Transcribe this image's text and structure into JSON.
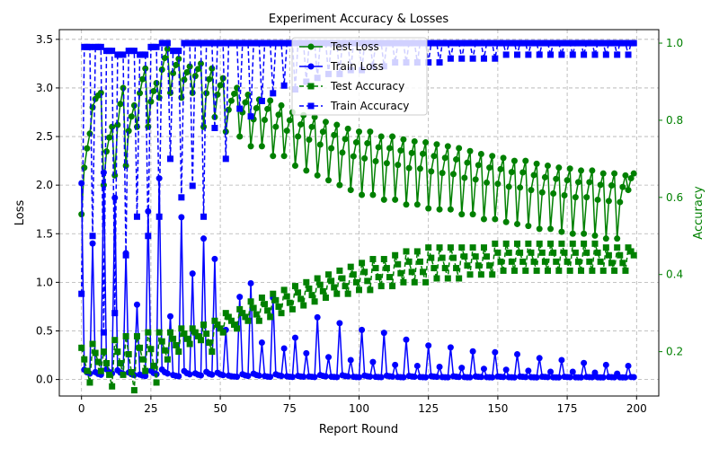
{
  "chart_data": {
    "type": "line",
    "title": "Experiment Accuracy & Losses",
    "xlabel": "Report Round",
    "ylabel": "Loss",
    "ylabel_right": "Accuracy",
    "xlim": [
      -8,
      208
    ],
    "ylim": [
      -0.17,
      3.6
    ],
    "ylim_right": [
      0.085,
      1.035
    ],
    "x_ticks": [
      0,
      25,
      50,
      75,
      100,
      125,
      150,
      175,
      200
    ],
    "y_ticks": [
      0.0,
      0.5,
      1.0,
      1.5,
      2.0,
      2.5,
      3.0,
      3.5
    ],
    "y_ticks_right": [
      0.2,
      0.4,
      0.6,
      0.8,
      1.0
    ],
    "grid": true,
    "legend_position": "top-center",
    "colors": {
      "loss": "#008000",
      "train_loss": "#0000ff",
      "test_acc": "#008000",
      "train_acc": "#0000ff",
      "right_axis": "#008000"
    },
    "series": [
      {
        "name": "Test Loss",
        "axis": "left",
        "color": "#008000",
        "linestyle": "solid",
        "marker": "circle"
      },
      {
        "name": "Train Loss",
        "axis": "left",
        "color": "#0000ff",
        "linestyle": "solid",
        "marker": "circle"
      },
      {
        "name": "Test Accuracy",
        "axis": "right",
        "color": "#008000",
        "linestyle": "dashed",
        "marker": "square"
      },
      {
        "name": "Train Accuracy",
        "axis": "right",
        "color": "#0000ff",
        "linestyle": "dashed",
        "marker": "square"
      }
    ],
    "cycle_pattern": {
      "x_max": 199,
      "cycles": [
        {
          "start": 0,
          "len": 4,
          "tl_peak": 2.53,
          "tl_trough": 1.7,
          "tr_peak": 2.02,
          "ta_low": 0.12,
          "ta_high": 0.21,
          "tra_low": 0.35,
          "tra_high": 0.99
        },
        {
          "start": 4,
          "len": 4,
          "tl_peak": 2.95,
          "tl_trough": 2.8,
          "tr_peak": 1.4,
          "ta_low": 0.15,
          "ta_high": 0.22,
          "tra_low": 0.5,
          "tra_high": 0.99
        },
        {
          "start": 8,
          "len": 4,
          "tl_peak": 2.6,
          "tl_trough": 2.0,
          "tr_peak": 2.13,
          "ta_low": 0.11,
          "ta_high": 0.2,
          "tra_low": 0.25,
          "tra_high": 0.98
        },
        {
          "start": 12,
          "len": 4,
          "tl_peak": 3.0,
          "tl_trough": 2.1,
          "tr_peak": 1.87,
          "ta_low": 0.14,
          "ta_high": 0.23,
          "tra_low": 0.3,
          "tra_high": 0.97
        },
        {
          "start": 16,
          "len": 4,
          "tl_peak": 2.82,
          "tl_trough": 2.2,
          "tr_peak": 1.3,
          "ta_low": 0.1,
          "ta_high": 0.24,
          "tra_low": 0.45,
          "tra_high": 0.98
        },
        {
          "start": 20,
          "len": 4,
          "tl_peak": 3.2,
          "tl_trough": 2.6,
          "tr_peak": 0.77,
          "ta_low": 0.15,
          "ta_high": 0.24,
          "tra_low": 0.55,
          "tra_high": 0.97
        },
        {
          "start": 24,
          "len": 4,
          "tl_peak": 3.05,
          "tl_trough": 2.6,
          "tr_peak": 1.73,
          "ta_low": 0.12,
          "ta_high": 0.25,
          "tra_low": 0.5,
          "tra_high": 0.99
        },
        {
          "start": 28,
          "len": 4,
          "tl_peak": 3.4,
          "tl_trough": 2.9,
          "tr_peak": 2.07,
          "ta_low": 0.18,
          "ta_high": 0.25,
          "tra_low": 0.55,
          "tra_high": 1.0
        },
        {
          "start": 32,
          "len": 4,
          "tl_peak": 3.3,
          "tl_trough": 2.95,
          "tr_peak": 0.65,
          "ta_low": 0.2,
          "ta_high": 0.25,
          "tra_low": 0.7,
          "tra_high": 0.98
        },
        {
          "start": 36,
          "len": 4,
          "tl_peak": 3.22,
          "tl_trough": 2.9,
          "tr_peak": 1.67,
          "ta_low": 0.22,
          "ta_high": 0.26,
          "tra_low": 0.6,
          "tra_high": 1.0
        },
        {
          "start": 40,
          "len": 4,
          "tl_peak": 3.25,
          "tl_trough": 2.95,
          "tr_peak": 1.09,
          "ta_low": 0.23,
          "ta_high": 0.26,
          "tra_low": 0.63,
          "tra_high": 1.0
        },
        {
          "start": 44,
          "len": 4,
          "tl_peak": 3.2,
          "tl_trough": 2.6,
          "tr_peak": 1.45,
          "ta_low": 0.2,
          "ta_high": 0.27,
          "tra_low": 0.55,
          "tra_high": 1.0
        },
        {
          "start": 48,
          "len": 4,
          "tl_peak": 3.1,
          "tl_trough": 2.7,
          "tr_peak": 1.24,
          "ta_low": 0.25,
          "ta_high": 0.28,
          "tra_low": 0.78,
          "tra_high": 1.0
        },
        {
          "start": 52,
          "len": 5,
          "tl_peak": 3.0,
          "tl_trough": 2.55,
          "tr_peak": 0.51,
          "ta_low": 0.26,
          "ta_high": 0.3,
          "tra_low": 0.7,
          "tra_high": 1.0
        },
        {
          "start": 57,
          "len": 4,
          "tl_peak": 2.93,
          "tl_trough": 2.5,
          "tr_peak": 0.85,
          "ta_low": 0.28,
          "ta_high": 0.31,
          "tra_low": 0.83,
          "tra_high": 1.0
        },
        {
          "start": 61,
          "len": 4,
          "tl_peak": 2.88,
          "tl_trough": 2.4,
          "tr_peak": 0.99,
          "ta_low": 0.28,
          "ta_high": 0.33,
          "tra_low": 0.81,
          "tra_high": 1.0
        },
        {
          "start": 65,
          "len": 4,
          "tl_peak": 2.87,
          "tl_trough": 2.4,
          "tr_peak": 0.38,
          "ta_low": 0.29,
          "ta_high": 0.34,
          "tra_low": 0.85,
          "tra_high": 1.0
        },
        {
          "start": 69,
          "len": 4,
          "tl_peak": 2.82,
          "tl_trough": 2.3,
          "tr_peak": 0.84,
          "ta_low": 0.3,
          "ta_high": 0.35,
          "tra_low": 0.87,
          "tra_high": 1.0
        },
        {
          "start": 73,
          "len": 4,
          "tl_peak": 2.75,
          "tl_trough": 2.3,
          "tr_peak": 0.32,
          "ta_low": 0.31,
          "ta_high": 0.36,
          "tra_low": 0.89,
          "tra_high": 1.0
        },
        {
          "start": 77,
          "len": 4,
          "tl_peak": 2.72,
          "tl_trough": 2.2,
          "tr_peak": 0.43,
          "ta_low": 0.32,
          "ta_high": 0.37,
          "tra_low": 0.88,
          "tra_high": 1.0
        },
        {
          "start": 81,
          "len": 4,
          "tl_peak": 2.7,
          "tl_trough": 2.15,
          "tr_peak": 0.27,
          "ta_low": 0.33,
          "ta_high": 0.38,
          "tra_low": 0.9,
          "tra_high": 1.0
        },
        {
          "start": 85,
          "len": 4,
          "tl_peak": 2.65,
          "tl_trough": 2.1,
          "tr_peak": 0.64,
          "ta_low": 0.34,
          "ta_high": 0.39,
          "tra_low": 0.91,
          "tra_high": 1.0
        },
        {
          "start": 89,
          "len": 4,
          "tl_peak": 2.62,
          "tl_trough": 2.05,
          "tr_peak": 0.23,
          "ta_low": 0.35,
          "ta_high": 0.4,
          "tra_low": 0.92,
          "tra_high": 1.0
        },
        {
          "start": 93,
          "len": 4,
          "tl_peak": 2.58,
          "tl_trough": 2.0,
          "tr_peak": 0.58,
          "ta_low": 0.35,
          "ta_high": 0.41,
          "tra_low": 0.92,
          "tra_high": 1.0
        },
        {
          "start": 97,
          "len": 4,
          "tl_peak": 2.55,
          "tl_trough": 1.95,
          "tr_peak": 0.2,
          "ta_low": 0.36,
          "ta_high": 0.42,
          "tra_low": 0.93,
          "tra_high": 1.0
        },
        {
          "start": 101,
          "len": 4,
          "tl_peak": 2.55,
          "tl_trough": 1.9,
          "tr_peak": 0.51,
          "ta_low": 0.36,
          "ta_high": 0.43,
          "tra_low": 0.93,
          "tra_high": 1.0
        },
        {
          "start": 105,
          "len": 4,
          "tl_peak": 2.5,
          "tl_trough": 1.9,
          "tr_peak": 0.18,
          "ta_low": 0.37,
          "ta_high": 0.44,
          "tra_low": 0.94,
          "tra_high": 1.0
        },
        {
          "start": 109,
          "len": 4,
          "tl_peak": 2.5,
          "tl_trough": 1.85,
          "tr_peak": 0.48,
          "ta_low": 0.37,
          "ta_high": 0.44,
          "tra_low": 0.94,
          "tra_high": 1.0
        },
        {
          "start": 113,
          "len": 4,
          "tl_peak": 2.47,
          "tl_trough": 1.85,
          "tr_peak": 0.15,
          "ta_low": 0.38,
          "ta_high": 0.45,
          "tra_low": 0.95,
          "tra_high": 1.0
        },
        {
          "start": 117,
          "len": 4,
          "tl_peak": 2.45,
          "tl_trough": 1.8,
          "tr_peak": 0.41,
          "ta_low": 0.38,
          "ta_high": 0.46,
          "tra_low": 0.95,
          "tra_high": 1.0
        },
        {
          "start": 121,
          "len": 4,
          "tl_peak": 2.44,
          "tl_trough": 1.8,
          "tr_peak": 0.14,
          "ta_low": 0.38,
          "ta_high": 0.46,
          "tra_low": 0.95,
          "tra_high": 1.0
        },
        {
          "start": 125,
          "len": 4,
          "tl_peak": 2.42,
          "tl_trough": 1.76,
          "tr_peak": 0.35,
          "ta_low": 0.39,
          "ta_high": 0.47,
          "tra_low": 0.95,
          "tra_high": 1.0
        },
        {
          "start": 129,
          "len": 4,
          "tl_peak": 2.4,
          "tl_trough": 1.75,
          "tr_peak": 0.13,
          "ta_low": 0.39,
          "ta_high": 0.47,
          "tra_low": 0.95,
          "tra_high": 1.0
        },
        {
          "start": 133,
          "len": 4,
          "tl_peak": 2.38,
          "tl_trough": 1.75,
          "tr_peak": 0.33,
          "ta_low": 0.39,
          "ta_high": 0.47,
          "tra_low": 0.96,
          "tra_high": 1.0
        },
        {
          "start": 137,
          "len": 4,
          "tl_peak": 2.35,
          "tl_trough": 1.7,
          "tr_peak": 0.12,
          "ta_low": 0.4,
          "ta_high": 0.47,
          "tra_low": 0.96,
          "tra_high": 1.0
        },
        {
          "start": 141,
          "len": 4,
          "tl_peak": 2.32,
          "tl_trough": 1.7,
          "tr_peak": 0.29,
          "ta_low": 0.4,
          "ta_high": 0.47,
          "tra_low": 0.96,
          "tra_high": 1.0
        },
        {
          "start": 145,
          "len": 4,
          "tl_peak": 2.3,
          "tl_trough": 1.65,
          "tr_peak": 0.11,
          "ta_low": 0.4,
          "ta_high": 0.47,
          "tra_low": 0.96,
          "tra_high": 1.0
        },
        {
          "start": 149,
          "len": 4,
          "tl_peak": 2.28,
          "tl_trough": 1.65,
          "tr_peak": 0.28,
          "ta_low": 0.41,
          "ta_high": 0.48,
          "tra_low": 0.96,
          "tra_high": 1.0
        },
        {
          "start": 153,
          "len": 4,
          "tl_peak": 2.25,
          "tl_trough": 1.62,
          "tr_peak": 0.1,
          "ta_low": 0.41,
          "ta_high": 0.48,
          "tra_low": 0.97,
          "tra_high": 1.0
        },
        {
          "start": 157,
          "len": 4,
          "tl_peak": 2.25,
          "tl_trough": 1.6,
          "tr_peak": 0.26,
          "ta_low": 0.41,
          "ta_high": 0.48,
          "tra_low": 0.97,
          "tra_high": 1.0
        },
        {
          "start": 161,
          "len": 4,
          "tl_peak": 2.22,
          "tl_trough": 1.58,
          "tr_peak": 0.09,
          "ta_low": 0.41,
          "ta_high": 0.48,
          "tra_low": 0.97,
          "tra_high": 1.0
        },
        {
          "start": 165,
          "len": 4,
          "tl_peak": 2.2,
          "tl_trough": 1.55,
          "tr_peak": 0.22,
          "ta_low": 0.41,
          "ta_high": 0.48,
          "tra_low": 0.97,
          "tra_high": 1.0
        },
        {
          "start": 169,
          "len": 4,
          "tl_peak": 2.18,
          "tl_trough": 1.55,
          "tr_peak": 0.08,
          "ta_low": 0.41,
          "ta_high": 0.48,
          "tra_low": 0.97,
          "tra_high": 1.0
        },
        {
          "start": 173,
          "len": 4,
          "tl_peak": 2.17,
          "tl_trough": 1.52,
          "tr_peak": 0.2,
          "ta_low": 0.41,
          "ta_high": 0.48,
          "tra_low": 0.97,
          "tra_high": 1.0
        },
        {
          "start": 177,
          "len": 4,
          "tl_peak": 2.15,
          "tl_trough": 1.5,
          "tr_peak": 0.08,
          "ta_low": 0.41,
          "ta_high": 0.48,
          "tra_low": 0.97,
          "tra_high": 1.0
        },
        {
          "start": 181,
          "len": 4,
          "tl_peak": 2.15,
          "tl_trough": 1.5,
          "tr_peak": 0.17,
          "ta_low": 0.41,
          "ta_high": 0.48,
          "tra_low": 0.97,
          "tra_high": 1.0
        },
        {
          "start": 185,
          "len": 4,
          "tl_peak": 2.12,
          "tl_trough": 1.48,
          "tr_peak": 0.07,
          "ta_low": 0.41,
          "ta_high": 0.48,
          "tra_low": 0.97,
          "tra_high": 1.0
        },
        {
          "start": 189,
          "len": 4,
          "tl_peak": 2.12,
          "tl_trough": 1.45,
          "tr_peak": 0.15,
          "ta_low": 0.41,
          "ta_high": 0.47,
          "tra_low": 0.97,
          "tra_high": 1.0
        },
        {
          "start": 193,
          "len": 4,
          "tl_peak": 2.1,
          "tl_trough": 1.45,
          "tr_peak": 0.06,
          "ta_low": 0.41,
          "ta_high": 0.47,
          "tra_low": 0.97,
          "tra_high": 1.0
        },
        {
          "start": 197,
          "len": 3,
          "tl_peak": 2.12,
          "tl_trough": 1.95,
          "tr_peak": 0.14,
          "ta_low": 0.45,
          "ta_high": 0.47,
          "tra_low": 0.97,
          "tra_high": 1.0
        }
      ]
    }
  }
}
